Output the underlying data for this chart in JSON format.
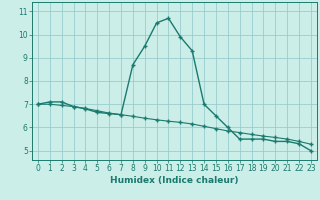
{
  "title": "",
  "xlabel": "Humidex (Indice chaleur)",
  "background_color": "#cceee8",
  "grid_color": "#99cccc",
  "line_color": "#1a7a6e",
  "x_series1": [
    0,
    1,
    2,
    3,
    4,
    5,
    6,
    7,
    8,
    9,
    10,
    11,
    12,
    13,
    14,
    15,
    16,
    17,
    18,
    19,
    20,
    21,
    22,
    23
  ],
  "y_series1": [
    7.0,
    7.1,
    7.1,
    6.9,
    6.8,
    6.65,
    6.6,
    6.55,
    8.7,
    9.5,
    10.5,
    10.7,
    9.9,
    9.3,
    7.0,
    6.5,
    6.0,
    5.5,
    5.5,
    5.5,
    5.4,
    5.4,
    5.3,
    5.0
  ],
  "x_series2": [
    0,
    1,
    2,
    3,
    4,
    5,
    6,
    7,
    8,
    9,
    10,
    11,
    12,
    13,
    14,
    15,
    16,
    17,
    18,
    19,
    20,
    21,
    22,
    23
  ],
  "y_series2": [
    7.0,
    7.0,
    6.95,
    6.9,
    6.82,
    6.72,
    6.62,
    6.55,
    6.48,
    6.4,
    6.33,
    6.27,
    6.22,
    6.15,
    6.05,
    5.95,
    5.85,
    5.78,
    5.7,
    5.63,
    5.57,
    5.5,
    5.4,
    5.28
  ],
  "ylim": [
    4.6,
    11.4
  ],
  "xlim": [
    -0.5,
    23.5
  ],
  "yticks": [
    5,
    6,
    7,
    8,
    9,
    10,
    11
  ],
  "xticks": [
    0,
    1,
    2,
    3,
    4,
    5,
    6,
    7,
    8,
    9,
    10,
    11,
    12,
    13,
    14,
    15,
    16,
    17,
    18,
    19,
    20,
    21,
    22,
    23
  ],
  "tick_fontsize": 5.5,
  "label_fontsize": 6.5
}
